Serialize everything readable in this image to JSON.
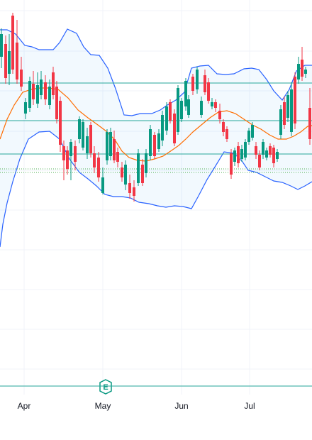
{
  "chart_data": {
    "type": "candlestick",
    "indicators": [
      "bollinger-bands",
      "moving-average"
    ],
    "x_axis": {
      "ticks": [
        "Apr",
        "May",
        "Jun",
        "Jul"
      ]
    },
    "events": [
      {
        "label": "E",
        "month": "May"
      }
    ],
    "horizontal_lines": 3,
    "colors": {
      "up": "#089981",
      "down": "#f23645",
      "band_line": "#2962ff",
      "band_fill": "#2196f3",
      "ma_line": "#ff6d00",
      "hline": "#26a69a",
      "dotted": "#4caf50",
      "grid": "#f0f3fa",
      "text": "#131722"
    },
    "grid": true
  }
}
